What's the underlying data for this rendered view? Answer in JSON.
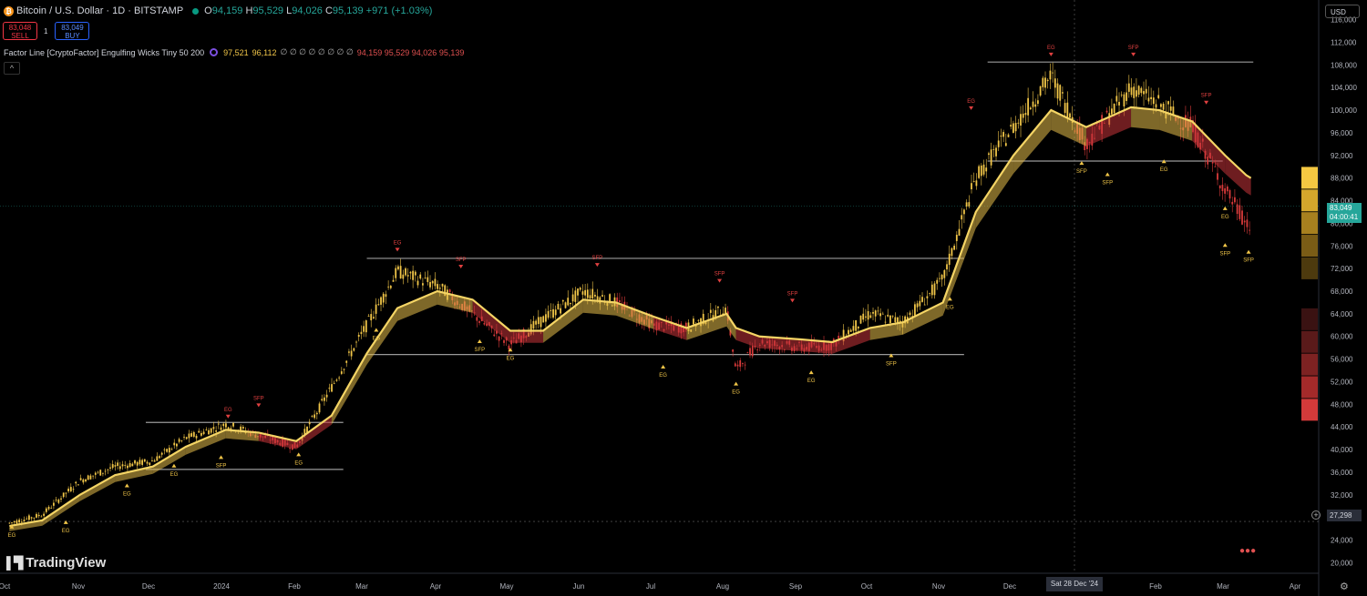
{
  "header": {
    "symbol": "Bitcoin / U.S. Dollar · 1D · BITSTAMP",
    "o_label": "O",
    "o": "94,159",
    "h_label": "H",
    "h": "95,529",
    "l_label": "L",
    "l": "94,026",
    "c_label": "C",
    "c": "95,139",
    "change": "+971 (+1.03%)"
  },
  "trade": {
    "sell_price": "83,048",
    "sell_label": "SELL",
    "spread": "1",
    "buy_price": "83,049",
    "buy_label": "BUY"
  },
  "indicator": {
    "name": "Factor Line [CryptoFactor] Engulfing Wicks Tiny 50 200",
    "v1": "97,521",
    "v2": "96,112",
    "zeros": "∅ ∅ ∅ ∅ ∅ ∅ ∅ ∅",
    "v3": "94,159 95,529 94,026 95,139"
  },
  "currency": "USD",
  "brand": "TradingView",
  "last_price": {
    "price": "83,049",
    "countdown": "04:00:41"
  },
  "crosshair": {
    "price": "27,298",
    "date": "Sat 28 Dec '24"
  },
  "colors": {
    "up": "#f0c548",
    "down": "#d83a3a",
    "ribbon_up": "#e6be4a",
    "ribbon_down": "#c9343a",
    "last": "#26a69a"
  },
  "chart_data": {
    "type": "line",
    "y_axis": {
      "ticks": [
        "116,000",
        "112,000",
        "108,000",
        "104,000",
        "100,000",
        "96,000",
        "92,000",
        "88,000",
        "84,000",
        "80,000",
        "76,000",
        "72,000",
        "68,000",
        "64,000",
        "60,000",
        "56,000",
        "52,000",
        "48,000",
        "44,000",
        "40,000",
        "36,000",
        "32,000",
        "28,000",
        "24,000",
        "20,000"
      ],
      "ylim": [
        17500,
        118500
      ]
    },
    "x_axis": {
      "labels": [
        "Oct",
        "Nov",
        "Dec",
        "2024",
        "Feb",
        "Mar",
        "Apr",
        "May",
        "Jun",
        "Jul",
        "Aug",
        "Sep",
        "Oct",
        "Nov",
        "Dec",
        "Feb",
        "Mar",
        "Apr"
      ]
    },
    "price_series": {
      "name": "",
      "x": [
        "2023-10-01",
        "2023-10-15",
        "2023-10-31",
        "2023-11-15",
        "2023-12-01",
        "2023-12-15",
        "2024-01-01",
        "2024-01-15",
        "2024-01-31",
        "2024-02-15",
        "2024-03-01",
        "2024-03-14",
        "2024-03-31",
        "2024-04-15",
        "2024-05-01",
        "2024-05-15",
        "2024-06-01",
        "2024-06-15",
        "2024-07-01",
        "2024-07-15",
        "2024-08-01",
        "2024-08-05",
        "2024-08-15",
        "2024-09-01",
        "2024-09-15",
        "2024-10-01",
        "2024-10-15",
        "2024-11-01",
        "2024-11-15",
        "2024-12-01",
        "2024-12-17",
        "2025-01-01",
        "2025-01-20",
        "2025-02-01",
        "2025-02-15",
        "2025-03-01",
        "2025-03-10",
        "2025-03-12"
      ],
      "close": [
        27000,
        28500,
        34500,
        37000,
        38000,
        42000,
        44500,
        42500,
        40500,
        51000,
        62000,
        71500,
        69000,
        64000,
        58500,
        63000,
        68000,
        66000,
        62000,
        61500,
        65000,
        54000,
        59000,
        58000,
        58500,
        64000,
        62500,
        70000,
        88000,
        97000,
        106000,
        94000,
        104000,
        101000,
        97000,
        86000,
        80000,
        79000
      ]
    },
    "ribbon_fast": {
      "name": "",
      "values": [
        26500,
        27500,
        32000,
        35500,
        37000,
        40500,
        43500,
        43000,
        41500,
        46000,
        57000,
        65000,
        68000,
        66500,
        61000,
        61000,
        66500,
        66000,
        63500,
        61500,
        64000,
        61500,
        60000,
        59500,
        59000,
        61500,
        62500,
        66000,
        82000,
        92000,
        100000,
        97000,
        100500,
        100000,
        98000,
        92000,
        88500,
        88000
      ]
    },
    "levels": [
      {
        "y": 108500,
        "x": [
          "2024-11-20",
          "2025-03-13"
        ]
      },
      {
        "y": 73800,
        "x": [
          "2024-03-01",
          "2024-11-10"
        ]
      },
      {
        "y": 56800,
        "x": [
          "2024-03-01",
          "2024-11-10"
        ]
      },
      {
        "y": 44800,
        "x": [
          "2023-11-28",
          "2024-02-20"
        ]
      },
      {
        "y": 36500,
        "x": [
          "2023-11-28",
          "2024-02-20"
        ]
      },
      {
        "y": 91000,
        "x": [
          "2024-11-20",
          "2025-02-28"
        ]
      }
    ],
    "markers": [
      {
        "x": "2023-10-25",
        "y": 27000,
        "label": "EG",
        "dir": "up"
      },
      {
        "x": "2023-10-02",
        "y": 26200,
        "label": "EG",
        "dir": "up"
      },
      {
        "x": "2023-11-20",
        "y": 33500,
        "label": "EG",
        "dir": "up"
      },
      {
        "x": "2023-12-10",
        "y": 37000,
        "label": "EG",
        "dir": "up"
      },
      {
        "x": "2023-12-30",
        "y": 38500,
        "label": "SFP",
        "dir": "up"
      },
      {
        "x": "2024-01-02",
        "y": 46000,
        "label": "EG",
        "dir": "down"
      },
      {
        "x": "2024-01-15",
        "y": 48000,
        "label": "SFP",
        "dir": "down"
      },
      {
        "x": "2024-02-01",
        "y": 39000,
        "label": "EG",
        "dir": "up"
      },
      {
        "x": "2024-03-05",
        "y": 61000,
        "label": "EG",
        "dir": "up"
      },
      {
        "x": "2024-03-14",
        "y": 75500,
        "label": "EG",
        "dir": "down"
      },
      {
        "x": "2024-04-10",
        "y": 72500,
        "label": "SFP",
        "dir": "down"
      },
      {
        "x": "2024-04-18",
        "y": 59000,
        "label": "SFP",
        "dir": "up"
      },
      {
        "x": "2024-05-01",
        "y": 57500,
        "label": "EG",
        "dir": "up"
      },
      {
        "x": "2024-06-07",
        "y": 72800,
        "label": "SFP",
        "dir": "down"
      },
      {
        "x": "2024-07-05",
        "y": 54500,
        "label": "EG",
        "dir": "up"
      },
      {
        "x": "2024-07-29",
        "y": 70000,
        "label": "SFP",
        "dir": "down"
      },
      {
        "x": "2024-08-05",
        "y": 51500,
        "label": "EG",
        "dir": "up"
      },
      {
        "x": "2024-08-29",
        "y": 66500,
        "label": "SFP",
        "dir": "down"
      },
      {
        "x": "2024-09-06",
        "y": 53500,
        "label": "EG",
        "dir": "up"
      },
      {
        "x": "2024-10-10",
        "y": 56500,
        "label": "SFP",
        "dir": "up"
      },
      {
        "x": "2024-11-04",
        "y": 66500,
        "label": "EG",
        "dir": "up"
      },
      {
        "x": "2024-11-13",
        "y": 100500,
        "label": "EG",
        "dir": "down"
      },
      {
        "x": "2024-12-17",
        "y": 110000,
        "label": "EG",
        "dir": "down"
      },
      {
        "x": "2024-12-30",
        "y": 90500,
        "label": "SFP",
        "dir": "up"
      },
      {
        "x": "2025-01-10",
        "y": 88500,
        "label": "SFP",
        "dir": "up"
      },
      {
        "x": "2025-01-21",
        "y": 110000,
        "label": "SFP",
        "dir": "down"
      },
      {
        "x": "2025-02-03",
        "y": 90800,
        "label": "EG",
        "dir": "up"
      },
      {
        "x": "2025-02-21",
        "y": 101500,
        "label": "SFP",
        "dir": "down"
      },
      {
        "x": "2025-03-01",
        "y": 82500,
        "label": "EG",
        "dir": "up"
      },
      {
        "x": "2025-03-01",
        "y": 76000,
        "label": "SFP",
        "dir": "up"
      },
      {
        "x": "2025-03-11",
        "y": 74800,
        "label": "SFP",
        "dir": "up"
      }
    ],
    "gauge": {
      "up_levels": [
        89000,
        85000,
        81000,
        77000,
        73000
      ],
      "down_levels": [
        64000,
        60000,
        56000,
        52000,
        48000
      ]
    }
  }
}
